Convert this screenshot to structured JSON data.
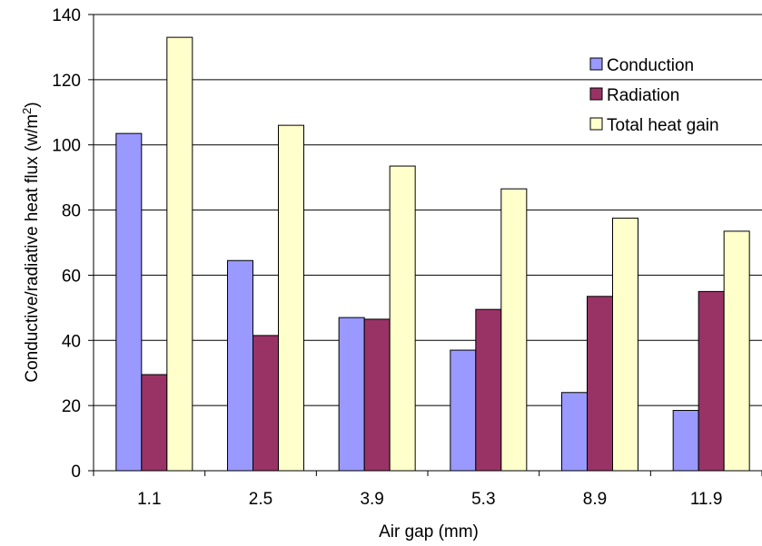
{
  "chart_data": {
    "type": "bar",
    "title": "",
    "xlabel": "Air gap (mm)",
    "ylabel": "Conductive/radiative heat flux (w/m",
    "ylabel_sup": "2",
    "ylabel_close": ")",
    "categories": [
      "1.1",
      "2.5",
      "3.9",
      "5.3",
      "8.9",
      "11.9"
    ],
    "series": [
      {
        "name": "Conduction",
        "color": "#9999FF",
        "values": [
          103.5,
          64.5,
          47,
          37,
          24,
          18.5
        ]
      },
      {
        "name": "Radiation",
        "color": "#993366",
        "values": [
          29.5,
          41.5,
          46.5,
          49.5,
          53.5,
          55
        ]
      },
      {
        "name": "Total heat gain",
        "color": "#FFFFCC",
        "values": [
          133,
          106,
          93.5,
          86.5,
          77.5,
          73.5
        ]
      }
    ],
    "ylim": [
      0,
      140
    ],
    "yticks": [
      0,
      20,
      40,
      60,
      80,
      100,
      120,
      140
    ],
    "grid": true,
    "legend_position": "top-right"
  }
}
